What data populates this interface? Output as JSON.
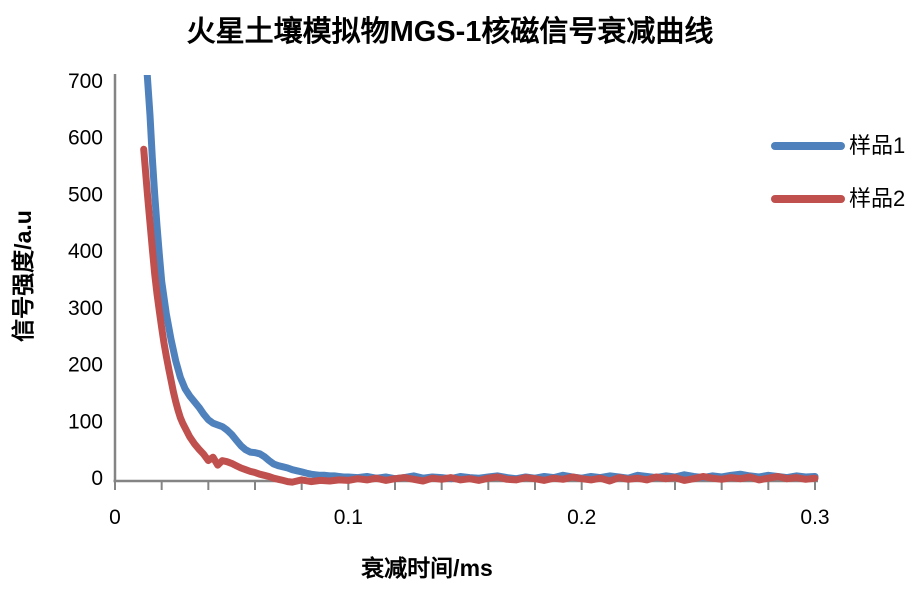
{
  "chart_data": {
    "type": "line",
    "title": "火星土壤模拟物MGS-1核磁信号衰减曲线",
    "xlabel": "衰减时间/ms",
    "ylabel": "信号强度/a.u",
    "xlim": [
      0,
      0.3
    ],
    "ylim": [
      0,
      700
    ],
    "x_tick_values": [
      0,
      0.1,
      0.2,
      0.3
    ],
    "x_tick_labels": [
      "0",
      "0.1",
      "0.2",
      "0.3"
    ],
    "x_minor_tick_step": 0.02,
    "y_tick_values": [
      0,
      100,
      200,
      300,
      400,
      500,
      600,
      700
    ],
    "y_tick_labels": [
      "0",
      "100",
      "200",
      "300",
      "400",
      "500",
      "600",
      "700"
    ],
    "grid": false,
    "legend_position": "right",
    "axis_color": "#848484",
    "line_width": 7,
    "series": [
      {
        "name": "样品1",
        "color": "#4F81BD",
        "x": [
          0.0136,
          0.015,
          0.016,
          0.017,
          0.018,
          0.019,
          0.02,
          0.022,
          0.024,
          0.026,
          0.028,
          0.03,
          0.032,
          0.034,
          0.036,
          0.038,
          0.04,
          0.042,
          0.044,
          0.046,
          0.048,
          0.05,
          0.052,
          0.054,
          0.056,
          0.058,
          0.06,
          0.062,
          0.064,
          0.066,
          0.068,
          0.07,
          0.072,
          0.074,
          0.076,
          0.078,
          0.08,
          0.082,
          0.084,
          0.086,
          0.088,
          0.09,
          0.092,
          0.094,
          0.096,
          0.098,
          0.1,
          0.104,
          0.108,
          0.112,
          0.116,
          0.12,
          0.124,
          0.128,
          0.132,
          0.136,
          0.14,
          0.144,
          0.148,
          0.152,
          0.156,
          0.16,
          0.164,
          0.168,
          0.172,
          0.176,
          0.18,
          0.184,
          0.188,
          0.192,
          0.196,
          0.2,
          0.204,
          0.208,
          0.212,
          0.216,
          0.22,
          0.224,
          0.228,
          0.232,
          0.236,
          0.24,
          0.244,
          0.248,
          0.252,
          0.256,
          0.26,
          0.264,
          0.268,
          0.272,
          0.276,
          0.28,
          0.284,
          0.288,
          0.292,
          0.296,
          0.3
        ],
        "y": [
          730,
          645,
          570,
          505,
          450,
          400,
          352,
          295,
          250,
          212,
          183,
          163,
          150,
          140,
          130,
          118,
          108,
          102,
          99,
          96,
          90,
          82,
          72,
          62,
          55,
          51,
          50,
          48,
          43,
          36,
          30,
          27,
          25,
          23,
          20,
          18,
          16,
          14,
          12,
          11,
          10,
          10,
          9,
          9,
          8,
          7,
          7,
          6,
          8,
          5,
          7,
          4,
          6,
          9,
          5,
          7,
          6,
          4,
          8,
          6,
          5,
          7,
          9,
          6,
          4,
          7,
          5,
          8,
          6,
          10,
          7,
          5,
          8,
          6,
          9,
          7,
          5,
          10,
          8,
          6,
          9,
          7,
          11,
          8,
          6,
          9,
          7,
          10,
          12,
          9,
          7,
          10,
          8,
          6,
          9,
          7,
          8
        ]
      },
      {
        "name": "样品2",
        "color": "#C0504D",
        "x": [
          0.0123,
          0.014,
          0.015,
          0.016,
          0.017,
          0.018,
          0.019,
          0.02,
          0.021,
          0.022,
          0.023,
          0.024,
          0.025,
          0.026,
          0.027,
          0.028,
          0.029,
          0.03,
          0.032,
          0.034,
          0.036,
          0.038,
          0.04,
          0.042,
          0.044,
          0.046,
          0.048,
          0.05,
          0.052,
          0.054,
          0.056,
          0.058,
          0.06,
          0.062,
          0.064,
          0.066,
          0.068,
          0.07,
          0.072,
          0.074,
          0.076,
          0.078,
          0.08,
          0.084,
          0.088,
          0.092,
          0.096,
          0.1,
          0.104,
          0.108,
          0.112,
          0.116,
          0.12,
          0.124,
          0.128,
          0.132,
          0.136,
          0.14,
          0.144,
          0.148,
          0.152,
          0.156,
          0.16,
          0.164,
          0.168,
          0.172,
          0.176,
          0.18,
          0.184,
          0.188,
          0.192,
          0.196,
          0.2,
          0.204,
          0.208,
          0.212,
          0.216,
          0.22,
          0.224,
          0.228,
          0.232,
          0.236,
          0.24,
          0.244,
          0.248,
          0.252,
          0.256,
          0.26,
          0.264,
          0.268,
          0.272,
          0.276,
          0.28,
          0.284,
          0.288,
          0.292,
          0.296,
          0.3
        ],
        "y": [
          585,
          500,
          455,
          410,
          365,
          330,
          300,
          270,
          243,
          220,
          198,
          178,
          158,
          140,
          125,
          112,
          102,
          94,
          78,
          66,
          56,
          47,
          36,
          42,
          28,
          36,
          34,
          31,
          27,
          23,
          20,
          17,
          15,
          12,
          10,
          8,
          5,
          3,
          1,
          -1,
          -2,
          0,
          2,
          -1,
          1,
          0,
          2,
          1,
          4,
          2,
          5,
          1,
          4,
          6,
          3,
          0,
          5,
          3,
          6,
          2,
          4,
          1,
          5,
          7,
          3,
          2,
          6,
          4,
          1,
          5,
          3,
          7,
          4,
          2,
          5,
          0,
          6,
          3,
          5,
          2,
          7,
          4,
          6,
          1,
          4,
          8,
          5,
          3,
          6,
          4,
          7,
          2,
          5,
          8,
          4,
          6,
          3,
          5
        ]
      }
    ]
  }
}
